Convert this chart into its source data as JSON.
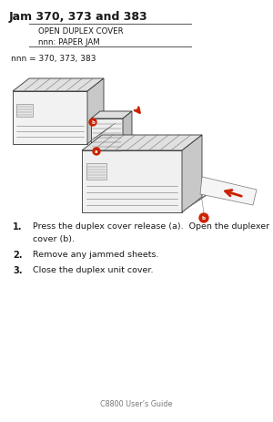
{
  "title": "Jam 370, 373 and 383",
  "box_line1": "OPEN DUPLEX COVER",
  "box_line2": "nnn: PAPER JAM",
  "nnn_line": "nnn = 370, 373, 383",
  "step1": "Press the duplex cover release (a).  Open the duplexer",
  "step1b": "cover (b).",
  "step2": "Remove any jammed sheets.",
  "step3": "Close the duplex unit cover.",
  "footer": "C8800 User’s Guide",
  "bg_color": "#ffffff",
  "text_color": "#1a1a1a",
  "red_color": "#cc2200",
  "gray_color": "#777777",
  "dark_gray": "#333333",
  "mid_gray": "#aaaaaa",
  "light_gray": "#dddddd",
  "box_rule_color": "#555555"
}
